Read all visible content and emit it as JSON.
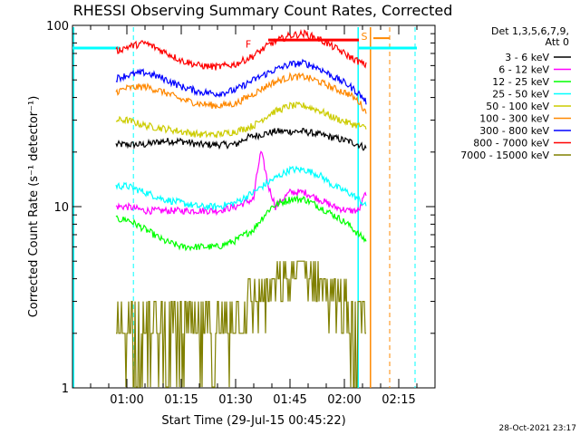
{
  "chart_data": {
    "type": "line",
    "title": "RHESSI Observing Summary Count Rates, Corrected",
    "xlabel": "Start Time (29-Jul-15 00:45:22)",
    "ylabel": "Corrected Count Rate (s⁻¹ detector⁻¹)",
    "yscale": "log",
    "ylim": [
      1,
      100
    ],
    "y_ticks": [
      {
        "value": 1,
        "label": "1"
      },
      {
        "value": 10,
        "label": "10"
      },
      {
        "value": 100,
        "label": "100"
      }
    ],
    "xlim_minutes": [
      0,
      100
    ],
    "x_ticks": [
      {
        "minute": 15,
        "label": "01:00"
      },
      {
        "minute": 30,
        "label": "01:15"
      },
      {
        "minute": 45,
        "label": "01:30"
      },
      {
        "minute": 60,
        "label": "01:45"
      },
      {
        "minute": 75,
        "label": "02:00"
      },
      {
        "minute": 90,
        "label": "02:15"
      }
    ],
    "legend_header": [
      "Det 1,3,5,6,7,9,",
      "Att 0"
    ],
    "legend_position": "right",
    "series": [
      {
        "name": "3 - 6 keV",
        "color": "#000000",
        "x": [
          12,
          15,
          20,
          25,
          30,
          35,
          40,
          45,
          48,
          52,
          56,
          60,
          64,
          68,
          72,
          76,
          79,
          81
        ],
        "y": [
          22,
          22,
          22,
          23,
          23,
          22,
          22,
          22,
          24,
          25,
          26,
          26,
          26,
          25,
          24,
          23,
          22,
          21
        ]
      },
      {
        "name": "6 - 12 keV",
        "color": "#ff00ff",
        "x": [
          12,
          15,
          20,
          25,
          30,
          35,
          40,
          45,
          50,
          52,
          54,
          56,
          58,
          60,
          64,
          68,
          72,
          76,
          79,
          81
        ],
        "y": [
          10,
          10,
          9.5,
          9.5,
          9.5,
          9.5,
          9.5,
          10,
          11,
          20,
          13,
          10,
          11,
          12,
          12,
          11,
          10,
          9.5,
          9.5,
          12
        ]
      },
      {
        "name": "12 - 25 keV",
        "color": "#00ff00",
        "x": [
          12,
          15,
          20,
          25,
          30,
          35,
          40,
          45,
          50,
          55,
          60,
          64,
          68,
          72,
          76,
          79,
          81
        ],
        "y": [
          8.5,
          8.5,
          7.5,
          6.5,
          6,
          6,
          6,
          6.5,
          7.5,
          10,
          11,
          11,
          10,
          9,
          8,
          7,
          6.5
        ]
      },
      {
        "name": "25 - 50 keV",
        "color": "#00ffff",
        "x": [
          12,
          15,
          20,
          25,
          30,
          35,
          40,
          45,
          50,
          55,
          60,
          64,
          68,
          72,
          76,
          79,
          81
        ],
        "y": [
          13,
          13,
          12,
          11,
          10.5,
          10,
          10,
          10.5,
          12,
          14,
          16,
          16,
          15,
          13,
          12,
          11,
          10
        ]
      },
      {
        "name": "50 - 100 keV",
        "color": "#cccc00",
        "x": [
          12,
          15,
          20,
          25,
          30,
          35,
          40,
          45,
          50,
          55,
          60,
          64,
          68,
          72,
          76,
          79,
          81
        ],
        "y": [
          30,
          30,
          28,
          27,
          26,
          25,
          25,
          26,
          28,
          33,
          36,
          36,
          34,
          31,
          29,
          28,
          27
        ]
      },
      {
        "name": "100 - 300 keV",
        "color": "#ff8800",
        "x": [
          12,
          15,
          20,
          25,
          30,
          35,
          40,
          45,
          50,
          55,
          60,
          64,
          68,
          72,
          76,
          79,
          81
        ],
        "y": [
          43,
          45,
          46,
          43,
          39,
          37,
          36,
          37,
          42,
          48,
          52,
          52,
          49,
          45,
          42,
          38,
          33
        ]
      },
      {
        "name": "300 - 800 keV",
        "color": "#0000ff",
        "x": [
          12,
          15,
          20,
          25,
          30,
          35,
          40,
          45,
          50,
          55,
          60,
          64,
          68,
          72,
          76,
          79,
          81
        ],
        "y": [
          51,
          53,
          55,
          51,
          46,
          43,
          42,
          44,
          50,
          56,
          61,
          62,
          58,
          52,
          47,
          42,
          38
        ]
      },
      {
        "name": "800 - 7000 keV",
        "color": "#ff0000",
        "x": [
          12,
          15,
          20,
          25,
          30,
          35,
          40,
          45,
          50,
          55,
          60,
          64,
          68,
          72,
          76,
          79,
          81
        ],
        "y": [
          72,
          76,
          80,
          72,
          64,
          60,
          59,
          61,
          68,
          80,
          88,
          90,
          84,
          76,
          68,
          63,
          60
        ]
      },
      {
        "name": "7000 - 15000 keV",
        "color": "#808000",
        "x": [
          12,
          15,
          20,
          25,
          30,
          35,
          40,
          45,
          50,
          55,
          60,
          62,
          64,
          68,
          72,
          76,
          79,
          81
        ],
        "y": [
          2,
          2.5,
          2,
          2,
          2,
          2,
          2,
          2.5,
          3,
          3.5,
          4,
          5,
          4.5,
          4,
          3,
          2.5,
          2,
          2
        ]
      }
    ],
    "annotations": [
      {
        "label": "F",
        "color": "#ff0000"
      },
      {
        "label": "S",
        "color": "#ff8800"
      }
    ],
    "footer_date": "28-Oct-2021 23:17"
  }
}
